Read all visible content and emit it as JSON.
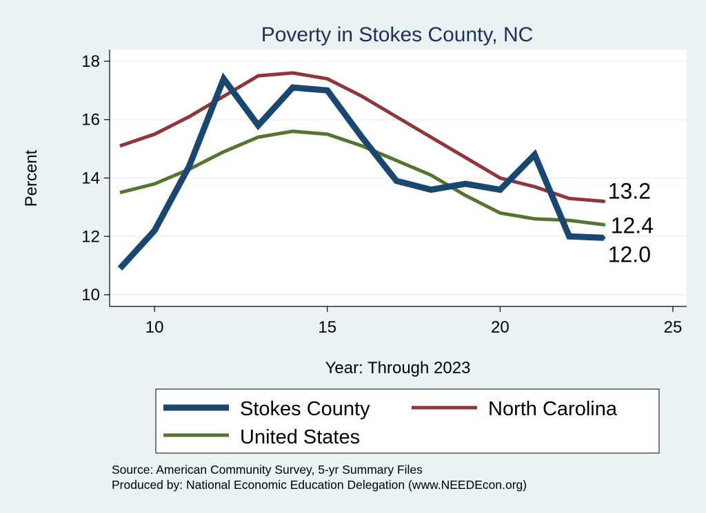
{
  "chart_data": {
    "type": "line",
    "title": "Poverty in Stokes County, NC",
    "xlabel": "Year: Through 2023",
    "ylabel": "Percent",
    "xlim": [
      8.7,
      25.4
    ],
    "ylim": [
      9.6,
      18.4
    ],
    "xticks": [
      10,
      15,
      20,
      25
    ],
    "yticks": [
      10,
      12,
      14,
      16,
      18
    ],
    "grid": true,
    "x": [
      9,
      10,
      11,
      12,
      13,
      14,
      15,
      16,
      17,
      18,
      19,
      20,
      21,
      22,
      23
    ],
    "series": [
      {
        "name": "Stokes County",
        "color": "#1a476f",
        "values": [
          10.9,
          12.2,
          14.4,
          17.4,
          15.8,
          17.1,
          17.0,
          15.4,
          13.9,
          13.6,
          13.8,
          13.6,
          14.8,
          12.0,
          11.95
        ],
        "end_label": "12.0"
      },
      {
        "name": "North Carolina",
        "color": "#90353b",
        "values": [
          15.1,
          15.5,
          16.1,
          16.8,
          17.5,
          17.6,
          17.4,
          16.8,
          16.1,
          15.4,
          14.7,
          14.0,
          13.7,
          13.3,
          13.2
        ],
        "end_label": "13.2"
      },
      {
        "name": "United States",
        "color": "#55752f",
        "values": [
          13.5,
          13.8,
          14.3,
          14.9,
          15.4,
          15.6,
          15.5,
          15.1,
          14.6,
          14.1,
          13.4,
          12.8,
          12.6,
          12.55,
          12.4
        ],
        "end_label": "12.4"
      }
    ],
    "legend_position": "bottom"
  },
  "footer": {
    "source": "Source: American Community Survey, 5-yr Summary Files",
    "produced_by": "Produced by: National Economic Education Delegation (www.NEEDEcon.org)"
  }
}
